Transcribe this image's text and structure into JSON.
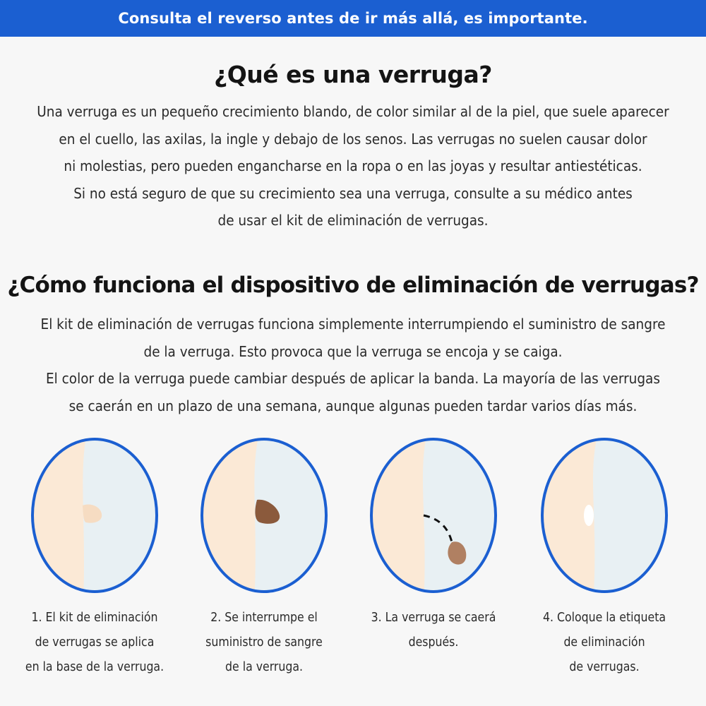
{
  "banner": {
    "text": "Consulta el reverso antes de ir más allá, es importante."
  },
  "section1": {
    "title": "¿Qué es una verruga?",
    "lines": [
      "Una verruga es un pequeño crecimiento blando, de color similar al de la piel, que suele aparecer",
      "en el cuello, las axilas, la ingle y debajo de los senos. Las verrugas no suelen causar dolor",
      "ni molestias, pero pueden engancharse en la ropa o en las joyas y resultar antiestéticas.",
      "Si no está seguro de que su crecimiento sea una verruga, consulte a su médico antes",
      "de usar el kit de eliminación de verrugas."
    ]
  },
  "section2": {
    "title": "¿Cómo funciona el dispositivo de eliminación de verrugas?",
    "lines": [
      "El kit de eliminación de verrugas funciona simplemente interrumpiendo el suministro de sangre",
      "de la verruga. Esto provoca que la verruga se encoja y se caiga.",
      "El color de la verruga puede cambiar después de aplicar la banda. La mayoría de las verrugas",
      "se caerán en un plazo de una semana, aunque algunas pueden tardar varios días más."
    ]
  },
  "steps": [
    {
      "caption": [
        "1. El kit de eliminación",
        "de verrugas se aplica",
        "en la base de la verruga."
      ]
    },
    {
      "caption": [
        "2. Se interrumpe el",
        "suministro de sangre",
        "de la verruga."
      ]
    },
    {
      "caption": [
        "3. La verruga se caerá",
        "después."
      ]
    },
    {
      "caption": [
        "4. Coloque la etiqueta",
        "de eliminación",
        "de verrugas."
      ]
    }
  ],
  "colors": {
    "banner": "#1b5fd1",
    "circle_border": "#1b5fd1",
    "skin": "#fbe9d6",
    "background_panel": "#e8f0f3",
    "wart_light": "#f6dcc2",
    "wart_dark": "#8b5a3c",
    "wart_fallen": "#b08062"
  }
}
